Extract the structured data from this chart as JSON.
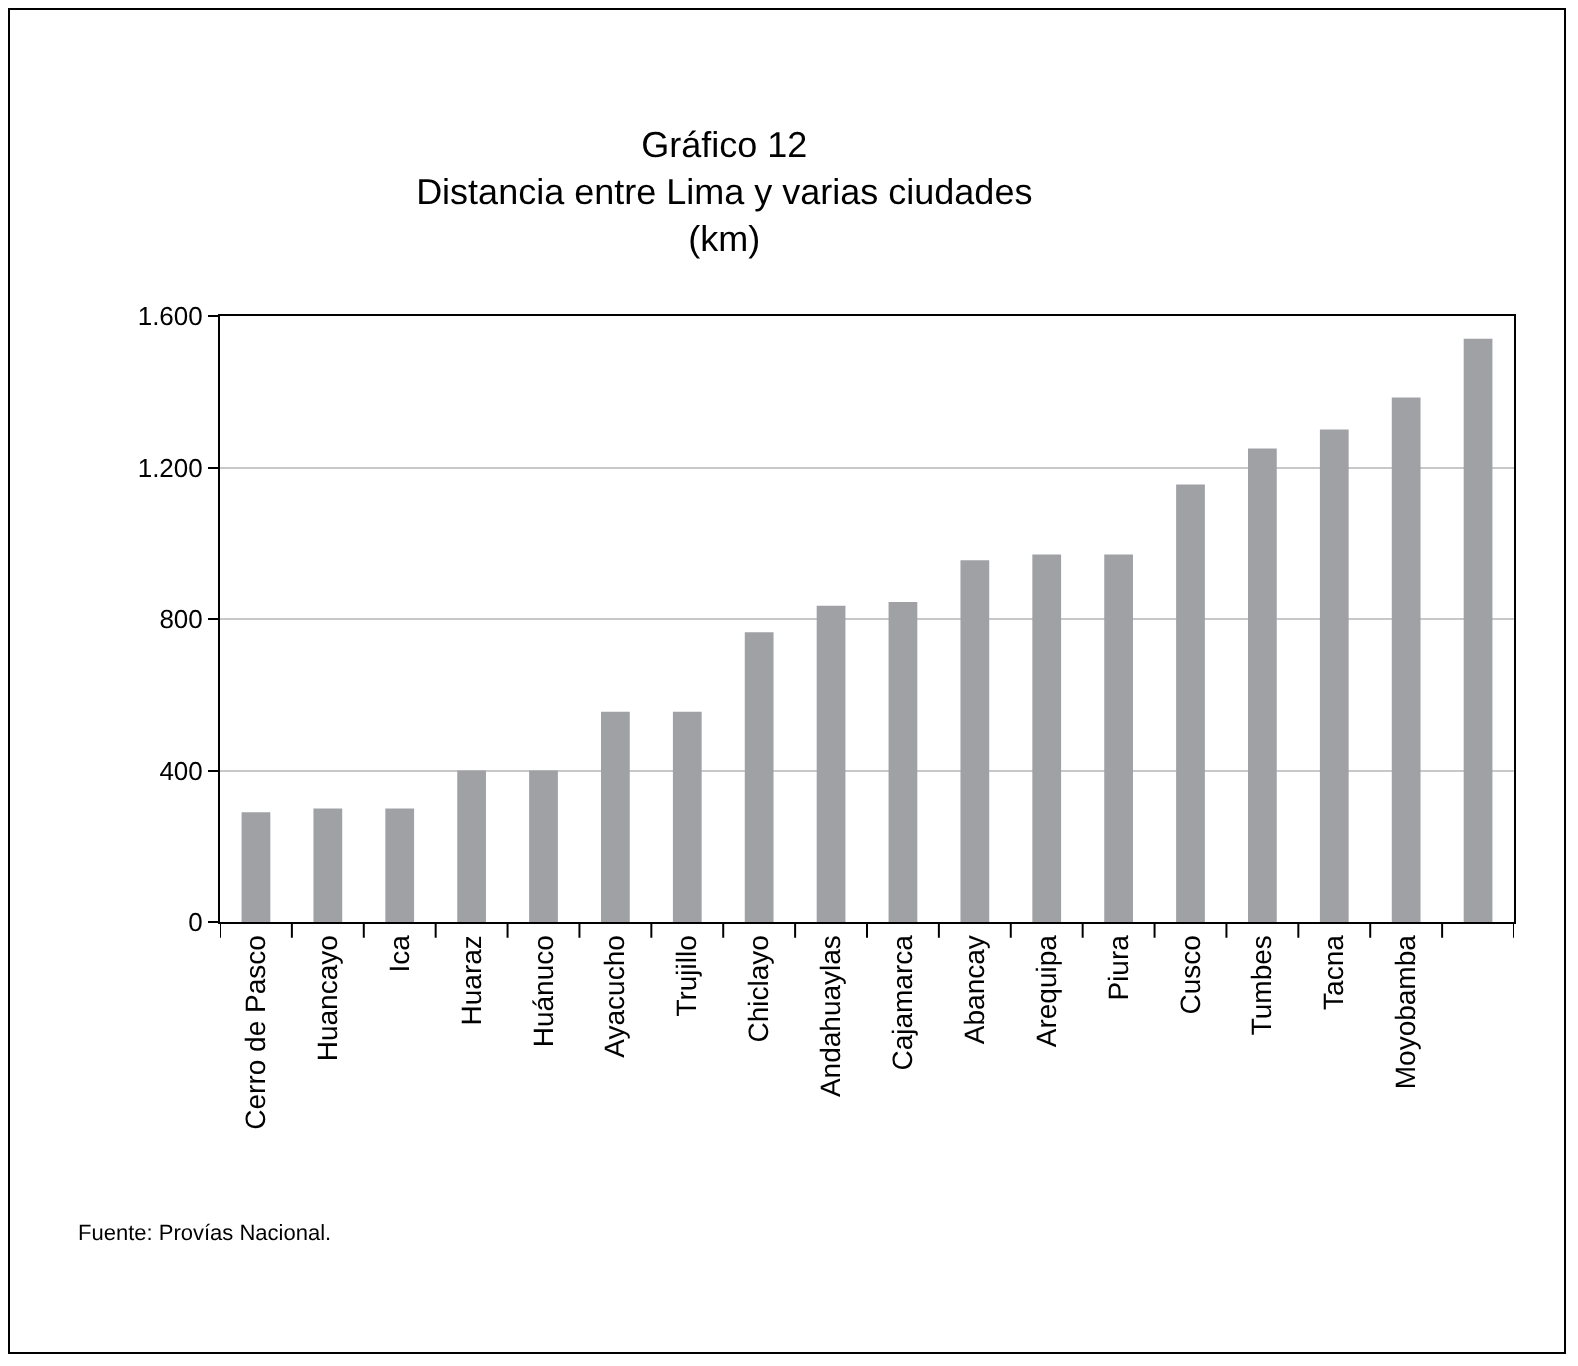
{
  "chart_data": {
    "type": "bar",
    "title": "Gráfico 12",
    "subtitle": "Distancia entre Lima y varias ciudades\n(km)",
    "categories": [
      "Cerro de Pasco",
      "Huancayo",
      "Ica",
      "Huaraz",
      "Huánuco",
      "Ayacucho",
      "Trujillo",
      "Chiclayo",
      "Andahuaylas",
      "Cajamarca",
      "Abancay",
      "Arequipa",
      "Piura",
      "Cusco",
      "Tumbes",
      "Tacna",
      "Moyobamba",
      null
    ],
    "values": [
      290,
      300,
      300,
      400,
      400,
      555,
      555,
      765,
      835,
      845,
      955,
      970,
      970,
      1155,
      1250,
      1300,
      1385,
      1540
    ],
    "color": "#a0a1a5",
    "ylim": [
      0,
      1600
    ],
    "yticks": [
      0,
      {
        "value": 400,
        "label": "400"
      },
      {
        "value": 800,
        "label": "800"
      },
      {
        "value": 1200,
        "label": "1.200"
      },
      {
        "value": 1600,
        "label": "1.600"
      }
    ],
    "grid": "y",
    "annotations": [
      "Fuente: Provías Nacional."
    ]
  }
}
